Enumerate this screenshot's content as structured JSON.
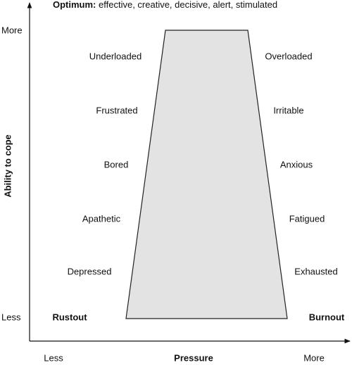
{
  "title": {
    "lead": "Optimum:",
    "text": "effective, creative, decisive, alert, stimulated"
  },
  "y_axis": {
    "label": "Ability to cope",
    "high": "More",
    "low": "Less"
  },
  "x_axis": {
    "label": "Pressure",
    "low": "Less",
    "high": "More"
  },
  "left_states": [
    "Underloaded",
    "Frustrated",
    "Bored",
    "Apathetic",
    "Depressed"
  ],
  "right_states": [
    "Overloaded",
    "Irritable",
    "Anxious",
    "Fatigued",
    "Exhausted"
  ],
  "left_end": "Rustout",
  "right_end": "Burnout"
}
